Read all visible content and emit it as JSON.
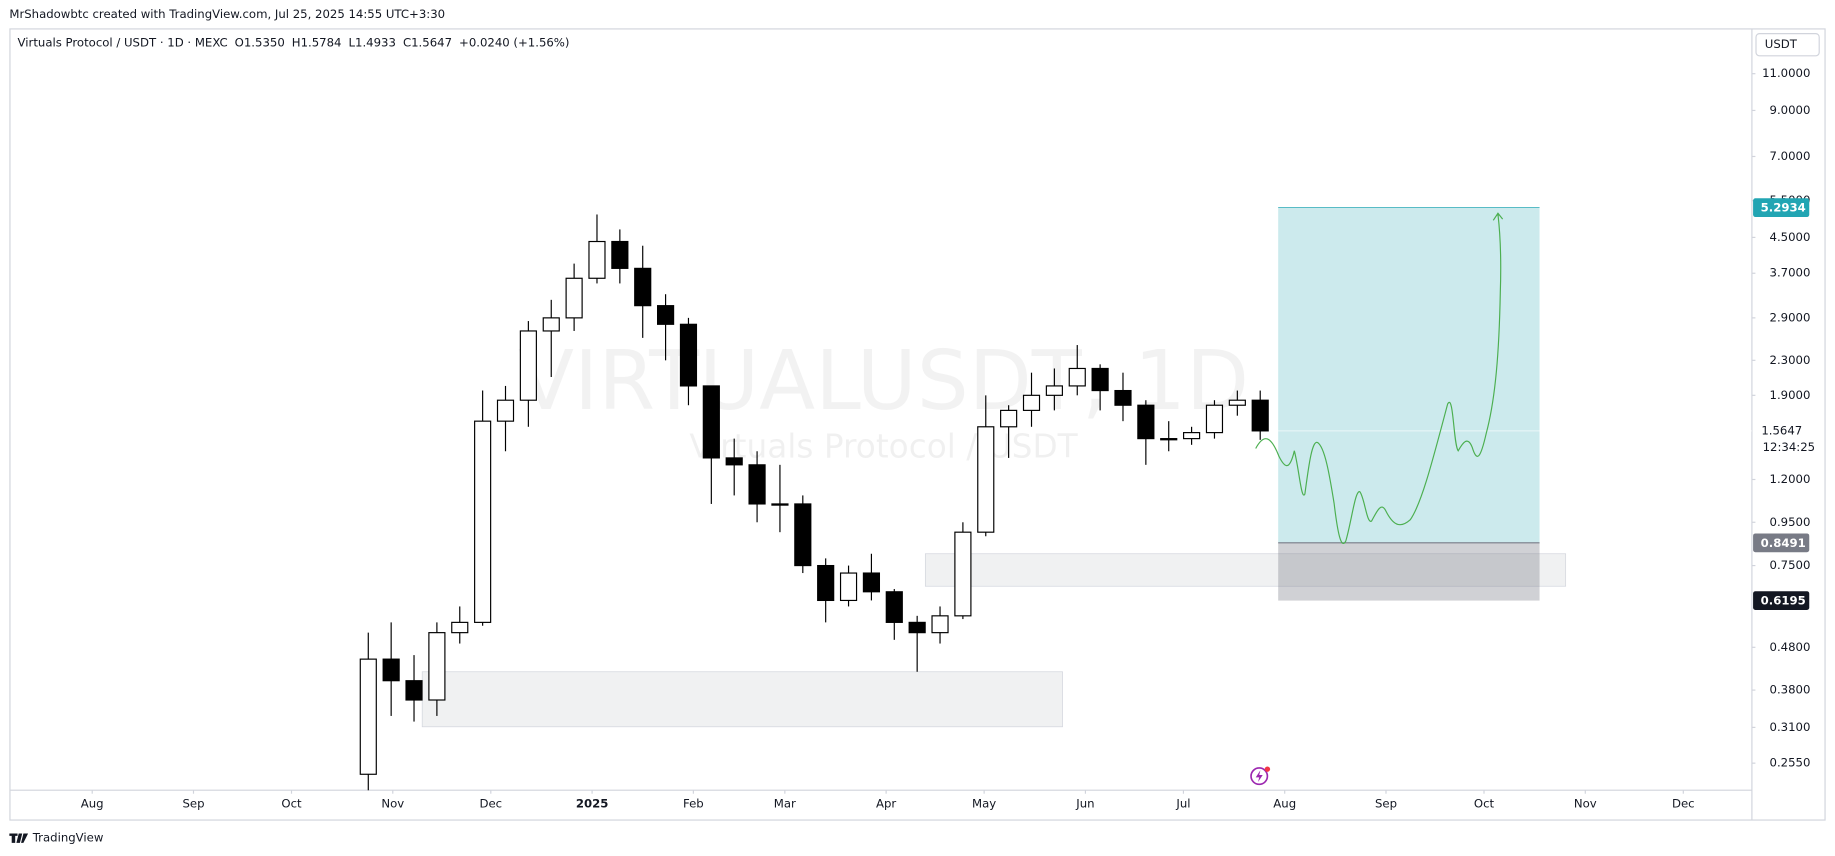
{
  "header": {
    "author_line": "MrShadowbtc created with TradingView.com, Jul 25, 2025 14:55 UTC+3:30"
  },
  "footer": {
    "logo": "TradingView"
  },
  "chart_data": {
    "type": "candlestick",
    "title": "Virtuals Protocol / USDT · 1D · MEXC",
    "legend": [
      "O1.5350",
      "H1.5784",
      "L1.4933",
      "C1.5647",
      "+0.0240 (+1.56%)"
    ],
    "watermark": "VIRTUALUSDT, 1D",
    "watermark_sub": "Virtuals Protocol / USDT",
    "currency": "USDT",
    "countdown": "12:34:25",
    "log_scale": true,
    "grid": false,
    "up_color": "#ffffff",
    "down_color": "#000000",
    "x": [
      "2024-10-21",
      "2024-10-28",
      "2024-11-04",
      "2024-11-11",
      "2024-11-18",
      "2024-11-25",
      "2024-12-02",
      "2024-12-09",
      "2024-12-16",
      "2024-12-23",
      "2024-12-30",
      "2025-01-06",
      "2025-01-13",
      "2025-01-20",
      "2025-01-27",
      "2025-02-03",
      "2025-02-10",
      "2025-02-17",
      "2025-02-24",
      "2025-03-03",
      "2025-03-10",
      "2025-03-17",
      "2025-03-24",
      "2025-03-31",
      "2025-04-07",
      "2025-04-14",
      "2025-04-21",
      "2025-04-28",
      "2025-05-05",
      "2025-05-12",
      "2025-05-19",
      "2025-05-26",
      "2025-06-02",
      "2025-06-09",
      "2025-06-16",
      "2025-06-23",
      "2025-06-30",
      "2025-07-07",
      "2025-07-14",
      "2025-07-21"
    ],
    "open": [
      0.24,
      0.45,
      0.4,
      0.36,
      0.52,
      0.55,
      1.65,
      1.85,
      2.7,
      2.9,
      3.6,
      4.4,
      3.8,
      3.1,
      2.8,
      2.0,
      1.35,
      1.3,
      1.05,
      1.05,
      0.75,
      0.62,
      0.72,
      0.65,
      0.55,
      0.52,
      0.57,
      0.9,
      1.6,
      1.75,
      1.9,
      2.0,
      2.2,
      1.95,
      1.8,
      1.5,
      1.5,
      1.55,
      1.8,
      1.85
    ],
    "high": [
      0.52,
      0.55,
      0.46,
      0.55,
      0.6,
      1.95,
      2.0,
      2.85,
      3.2,
      3.9,
      5.1,
      4.7,
      4.3,
      3.3,
      2.9,
      2.0,
      1.5,
      1.4,
      1.3,
      1.1,
      0.78,
      0.75,
      0.8,
      0.66,
      0.57,
      0.6,
      0.95,
      1.9,
      1.8,
      2.15,
      2.2,
      2.5,
      2.25,
      2.15,
      1.85,
      1.65,
      1.6,
      1.85,
      1.95,
      1.95
    ],
    "low": [
      0.22,
      0.33,
      0.32,
      0.33,
      0.49,
      0.54,
      1.4,
      1.6,
      2.1,
      2.7,
      3.5,
      3.5,
      2.6,
      2.3,
      1.8,
      1.05,
      1.1,
      0.95,
      0.9,
      0.72,
      0.55,
      0.6,
      0.62,
      0.5,
      0.42,
      0.49,
      0.56,
      0.88,
      1.35,
      1.6,
      1.75,
      1.9,
      1.75,
      1.65,
      1.3,
      1.4,
      1.45,
      1.5,
      1.7,
      1.49
    ],
    "close": [
      0.45,
      0.4,
      0.36,
      0.52,
      0.55,
      1.65,
      1.85,
      2.7,
      2.9,
      3.6,
      4.4,
      3.8,
      3.1,
      2.8,
      2.0,
      1.35,
      1.3,
      1.05,
      1.05,
      0.75,
      0.62,
      0.72,
      0.65,
      0.55,
      0.52,
      0.57,
      0.9,
      1.6,
      1.75,
      1.9,
      2.0,
      2.2,
      1.95,
      1.8,
      1.5,
      1.5,
      1.55,
      1.8,
      1.85,
      1.5647
    ],
    "last_price": 1.5647,
    "position": {
      "x": [
        "2025-07-30",
        "2025-10-18"
      ],
      "target": 5.2934,
      "entry": 0.8491,
      "stop": 0.6195,
      "target_color": "#22a5b3",
      "entry_color": "#787b86",
      "stop_color": "#131722"
    },
    "zones": [
      {
        "x": [
          "2024-11-10",
          "2025-05-25"
        ],
        "y": [
          0.311,
          0.42
        ]
      },
      {
        "x": [
          "2025-04-13",
          "2025-10-26"
        ],
        "y": [
          0.67,
          0.8
        ]
      }
    ],
    "xlim": [
      "2024-07-07",
      "2025-12-22"
    ],
    "xticks": [
      {
        "value": "2024-08-01",
        "label": "Aug"
      },
      {
        "value": "2024-09-01",
        "label": "Sep"
      },
      {
        "value": "2024-10-01",
        "label": "Oct"
      },
      {
        "value": "2024-11-01",
        "label": "Nov"
      },
      {
        "value": "2024-12-01",
        "label": "Dec"
      },
      {
        "value": "2025-01-01",
        "label": "2025"
      },
      {
        "value": "2025-02-01",
        "label": "Feb"
      },
      {
        "value": "2025-03-01",
        "label": "Mar"
      },
      {
        "value": "2025-04-01",
        "label": "Apr"
      },
      {
        "value": "2025-05-01",
        "label": "May"
      },
      {
        "value": "2025-06-01",
        "label": "Jun"
      },
      {
        "value": "2025-07-01",
        "label": "Jul"
      },
      {
        "value": "2025-08-01",
        "label": "Aug"
      },
      {
        "value": "2025-09-01",
        "label": "Sep"
      },
      {
        "value": "2025-10-01",
        "label": "Oct"
      },
      {
        "value": "2025-11-01",
        "label": "Nov"
      },
      {
        "value": "2025-12-01",
        "label": "Dec"
      }
    ],
    "ylim": [
      0.22,
      14
    ],
    "yticks": [
      {
        "value": 11,
        "label": "11.0000"
      },
      {
        "value": 9,
        "label": "9.0000"
      },
      {
        "value": 7,
        "label": "7.0000"
      },
      {
        "value": 5.5,
        "label": "5.5000"
      },
      {
        "value": 4.5,
        "label": "4.5000"
      },
      {
        "value": 3.7,
        "label": "3.7000"
      },
      {
        "value": 2.9,
        "label": "2.9000"
      },
      {
        "value": 2.3,
        "label": "2.3000"
      },
      {
        "value": 1.9,
        "label": "1.9000"
      },
      {
        "value": 1.2,
        "label": "1.2000"
      },
      {
        "value": 0.95,
        "label": "0.9500"
      },
      {
        "value": 0.75,
        "label": "0.7500"
      },
      {
        "value": 0.48,
        "label": "0.4800"
      },
      {
        "value": 0.38,
        "label": "0.3800"
      },
      {
        "value": 0.31,
        "label": "0.3100"
      },
      {
        "value": 0.255,
        "label": "0.2550"
      }
    ]
  }
}
